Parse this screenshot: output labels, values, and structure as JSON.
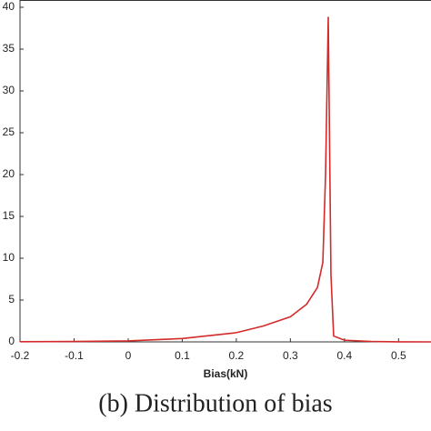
{
  "chart_data": {
    "type": "line",
    "x_label": "Bias(kN)",
    "caption": "(b) Distribution of bias",
    "x": [
      -0.2,
      -0.1,
      0,
      0.1,
      0.2,
      0.25,
      0.3,
      0.33,
      0.35,
      0.36,
      0.365,
      0.37,
      0.375,
      0.38,
      0.4,
      0.45,
      0.5,
      0.56
    ],
    "series": [
      {
        "color": "#d42a2a",
        "values": [
          0.02,
          0.05,
          0.12,
          0.4,
          1.1,
          1.9,
          3.0,
          4.5,
          6.5,
          9.5,
          20,
          38.8,
          8,
          0.7,
          0.2,
          0.05,
          0.01,
          0
        ]
      }
    ],
    "xlim": [
      -0.2,
      0.56
    ],
    "ylim": [
      0,
      40
    ],
    "xticks": [
      -0.2,
      -0.1,
      0,
      0.1,
      0.2,
      0.3,
      0.4,
      0.5
    ],
    "yticks": [
      0,
      5,
      10,
      15,
      20,
      25,
      30,
      35,
      40
    ]
  }
}
